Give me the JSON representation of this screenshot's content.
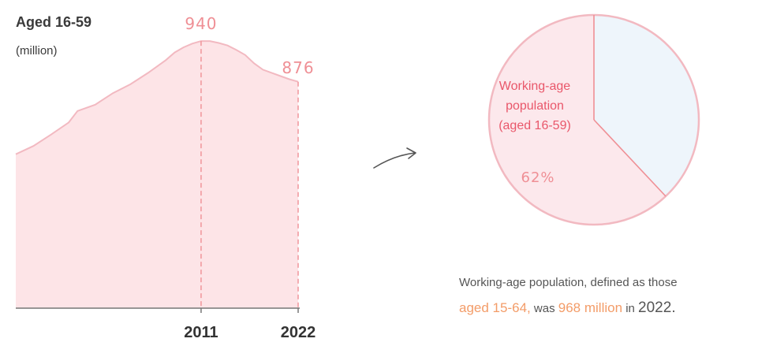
{
  "chart_data": [
    {
      "type": "area",
      "ylabel_line1": "Aged 16-59",
      "ylabel_line2": "(million)",
      "series": [
        {
          "values": [
            [
              1990,
              762
            ],
            [
              1992,
              775
            ],
            [
              1994,
              793
            ],
            [
              1996,
              812
            ],
            [
              1997,
              830
            ],
            [
              1999,
              840
            ],
            [
              2001,
              858
            ],
            [
              2003,
              872
            ],
            [
              2005,
              890
            ],
            [
              2007,
              910
            ],
            [
              2008,
              922
            ],
            [
              2009,
              930
            ],
            [
              2010,
              936
            ],
            [
              2011,
              940
            ],
            [
              2012,
              940
            ],
            [
              2013,
              937
            ],
            [
              2014,
              933
            ],
            [
              2015,
              926
            ],
            [
              2016,
              918
            ],
            [
              2017,
              905
            ],
            [
              2018,
              895
            ],
            [
              2019,
              890
            ],
            [
              2020,
              885
            ],
            [
              2021,
              880
            ],
            [
              2022,
              876
            ]
          ]
        }
      ],
      "xlim": [
        1990,
        2022
      ],
      "ylim": [
        520,
        950
      ],
      "highlights": [
        {
          "x": 2011,
          "x_label": "2011",
          "value_label": "940"
        },
        {
          "x": 2022,
          "x_label": "2022",
          "value_label": "876"
        }
      ],
      "colors": {
        "fill": "#fde4e7",
        "stroke": "#f2b9c1",
        "accent": "#ef8f95",
        "axis": "#777777"
      }
    },
    {
      "type": "pie",
      "slices": [
        {
          "label_lines": [
            "Working-age",
            "population",
            "(aged 16-59)"
          ],
          "value": 62,
          "value_label": "62%",
          "color": "#fce8ec"
        },
        {
          "value": 38,
          "color": "#eef5fb"
        }
      ],
      "colors": {
        "stroke": "#f2b9c1",
        "divider": "#ef8f95"
      }
    }
  ],
  "caption": {
    "line1": "Working-age population, defined as those",
    "age_range": "aged 15-64,",
    "was": " was ",
    "amount": "968 million",
    "in": " in ",
    "year": "2022."
  },
  "colors": {
    "highlight": "#f39c68",
    "text": "#555555"
  }
}
